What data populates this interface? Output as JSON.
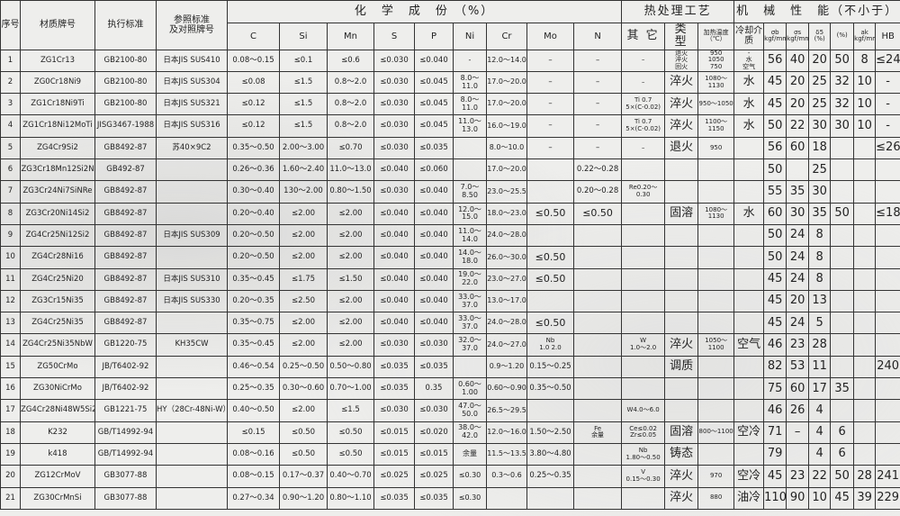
{
  "header": {
    "seq": "序号",
    "material": "材质牌号",
    "standard": "执行标准",
    "reference": "参照标准\n及对照牌号",
    "chem": "化　学　成　份 （%）",
    "heat": "热处理工艺",
    "mech": "机　械　性　能（不小于）",
    "sub": [
      "C",
      "Si",
      "Mn",
      "S",
      "P",
      "Ni",
      "Cr",
      "Mo",
      "N",
      "其 它",
      "类 型",
      "加热温度\n（℃）",
      "冷却介质",
      "σb\nkgf/mm2",
      "σs\nkgf/mm2",
      "δ5\n(%)",
      "(%)",
      "ak\nkgf/mm2",
      "HB"
    ]
  },
  "rows": [
    [
      "1",
      "ZG1Cr13",
      "GB2100-80",
      "日本JIS SUS410",
      "0.08～0.15",
      "≤0.1",
      "≤0.6",
      "≤0.030",
      "≤0.040",
      "-",
      "12.0～14.0",
      "–",
      "–",
      "–",
      "退火\n淬火\n回火",
      "950\n1050\n750",
      "-\n水\n空气",
      "56",
      "40",
      "20",
      "50",
      "8",
      "≤241"
    ],
    [
      "2",
      "ZG0Cr18Ni9",
      "GB2100-80",
      "日本JIS SUS304",
      "≤0.08",
      "≤1.5",
      "0.8～2.0",
      "≤0.030",
      "≤0.045",
      "8.0～11.0",
      "17.0～20.0",
      "–",
      "–",
      "–",
      "淬火",
      "1080～1130",
      "水",
      "45",
      "20",
      "25",
      "32",
      "10",
      "-"
    ],
    [
      "3",
      "ZG1Cr18Ni9Ti",
      "GB2100-80",
      "日本JIS SUS321",
      "≤0.12",
      "≤1.5",
      "0.8～2.0",
      "≤0.030",
      "≤0.045",
      "8.0～11.0",
      "17.0～20.0",
      "–",
      "–",
      "Ti 0.7\n5×(C-0.02)",
      "淬火",
      "950～1050",
      "水",
      "45",
      "20",
      "25",
      "32",
      "10",
      "-"
    ],
    [
      "4",
      "ZG1Cr18Ni12MoTi",
      "JISG3467-1988",
      "日本JIS SUS316",
      "≤0.12",
      "≤1.5",
      "0.8～2.0",
      "≤0.030",
      "≤0.045",
      "11.0～13.0",
      "16.0～19.0",
      "–",
      "–",
      "Ti 0.7\n5×(C-0.02)",
      "淬火",
      "1100～1150",
      "水",
      "50",
      "22",
      "30",
      "30",
      "10",
      "-"
    ],
    [
      "5",
      "ZG4Cr9Si2",
      "GB8492-87",
      "苏40×9C2",
      "0.35～0.50",
      "2.00～3.00",
      "≤0.70",
      "≤0.030",
      "≤0.035",
      "",
      "8.0～10.0",
      "–",
      "–",
      "–",
      "退火",
      "950",
      "",
      "56",
      "60",
      "18",
      "",
      "",
      "≤269"
    ],
    [
      "6",
      "ZG3Cr18Mn12Si2N",
      "GB492-87",
      "",
      "0.26～0.36",
      "1.60～2.40",
      "11.0～13.0",
      "≤0.040",
      "≤0.060",
      "",
      "17.0～20.0",
      "",
      "0.22～0.28",
      "",
      "",
      "",
      "",
      "50",
      "",
      "25",
      "",
      "",
      ""
    ],
    [
      "7",
      "ZG3Cr24Ni7SiNRe",
      "GB8492-87",
      "",
      "0.30～0.40",
      "130～2.00",
      "0.80～1.50",
      "≤0.030",
      "≤0.040",
      "7.0～8.50",
      "23.0～25.5",
      "",
      "0.20～0.28",
      "Re0.20～0.30",
      "",
      "",
      "",
      "55",
      "35",
      "30",
      "",
      "",
      ""
    ],
    [
      "8",
      "ZG3Cr20Ni14Si2",
      "GB8492-87",
      "",
      "0.20～0.40",
      "≤2.00",
      "≤2.00",
      "≤0.040",
      "≤0.040",
      "12.0～15.0",
      "18.0～23.0",
      "≤0.50",
      "≤0.50",
      "",
      "固溶",
      "1080～1130",
      "水",
      "60",
      "30",
      "35",
      "50",
      "",
      "≤187"
    ],
    [
      "9",
      "ZG4Cr25Ni12Si2",
      "GB8492-87",
      "日本JIS SUS309",
      "0.20～0.50",
      "≤2.00",
      "≤2.00",
      "≤0.040",
      "≤0.040",
      "11.0～14.0",
      "24.0～28.0",
      "",
      "",
      "",
      "",
      "",
      "",
      "50",
      "24",
      "8",
      "",
      "",
      ""
    ],
    [
      "10",
      "ZG4Cr28Ni16",
      "GB8492-87",
      "",
      "0.20～0.50",
      "≤2.00",
      "≤2.00",
      "≤0.040",
      "≤0.040",
      "14.0～18.0",
      "26.0～30.0",
      "≤0.50",
      "",
      "",
      "",
      "",
      "",
      "50",
      "24",
      "8",
      "",
      "",
      ""
    ],
    [
      "11",
      "ZG4Cr25Ni20",
      "GB8492-87",
      "日本JIS SUS310",
      "0.35～0.45",
      "≤1.75",
      "≤1.50",
      "≤0.040",
      "≤0.040",
      "19.0～22.0",
      "23.0～27.0",
      "≤0.50",
      "",
      "",
      "",
      "",
      "",
      "45",
      "24",
      "8",
      "",
      "",
      ""
    ],
    [
      "12",
      "ZG3Cr15Ni35",
      "GB8492-87",
      "日本JIS SUS330",
      "0.20～0.35",
      "≤2.50",
      "≤2.00",
      "≤0.040",
      "≤0.040",
      "33.0～37.0",
      "13.0～17.0",
      "",
      "",
      "",
      "",
      "",
      "",
      "45",
      "20",
      "13",
      "",
      "",
      ""
    ],
    [
      "13",
      "ZG4Cr25Ni35",
      "GB8492-87",
      "",
      "0.35～0.75",
      "≤2.00",
      "≤2.00",
      "≤0.040",
      "≤0.040",
      "33.0～37.0",
      "24.0～28.0",
      "≤0.50",
      "",
      "",
      "",
      "",
      "",
      "45",
      "24",
      "5",
      "",
      "",
      ""
    ],
    [
      "14",
      "ZG4Cr25Ni35NbW",
      "GB1220-75",
      "KH35CW",
      "0.35～0.45",
      "≤2.00",
      "≤2.00",
      "≤0.030",
      "≤0.030",
      "32.0～37.0",
      "24.0～27.0",
      "Nb\n1.0  2.0",
      "",
      "W\n1.0～2.0",
      "淬火",
      "1050～1100",
      "空气",
      "46",
      "23",
      "28",
      "",
      "",
      ""
    ],
    [
      "15",
      "ZG50CrMo",
      "JB/T6402-92",
      "",
      "0.46～0.54",
      "0.25～0.50",
      "0.50～0.80",
      "≤0.035",
      "≤0.035",
      "",
      "0.9～1.20",
      "0.15～0.25",
      "",
      "",
      "调质",
      "",
      "",
      "82",
      "53",
      "11",
      "",
      "",
      "240"
    ],
    [
      "16",
      "ZG30NiCrMo",
      "JB/T6402-92",
      "",
      "0.25～0.35",
      "0.30～0.60",
      "0.70～1.00",
      "≤0.035",
      "0.35",
      "0.60～1.00",
      "0.60～0.90",
      "0.35～0.50",
      "",
      "",
      "",
      "",
      "",
      "75",
      "60",
      "17",
      "35",
      "",
      ""
    ],
    [
      "17",
      "ZG4Cr28Ni48W5Si2",
      "GB1221-75",
      "HY（28Cr-48Ni-W）",
      "0.40～0.50",
      "≤2.00",
      "≤1.5",
      "≤0.030",
      "≤0.030",
      "47.0～50.0",
      "26.5～29.5",
      "",
      "",
      "W4.0～6.0",
      "",
      "",
      "",
      "46",
      "26",
      "4",
      "",
      "",
      ""
    ],
    [
      "18",
      "K232",
      "GB/T14992-94",
      "",
      "≤0.15",
      "≤0.50",
      "≤0.50",
      "≤0.015",
      "≤0.020",
      "38.0～42.0",
      "12.0～16.0",
      "1.50～2.50",
      "Fe\n余量",
      "Ce≤0.02\nZr≤0.05",
      "固溶",
      "800～1100",
      "空冷",
      "71",
      "–",
      "4",
      "6",
      "",
      ""
    ],
    [
      "19",
      "k418",
      "GB/T14992-94",
      "",
      "0.08～0.16",
      "≤0.50",
      "≤0.50",
      "≤0.015",
      "≤0.015",
      "余量",
      "11.5～13.5",
      "3.80～4.80",
      "",
      "Nb\n1.80～0.50",
      "铸态",
      "",
      "",
      "79",
      "",
      "4",
      "6",
      "",
      ""
    ],
    [
      "20",
      "ZG12CrMoV",
      "GB3077-88",
      "",
      "0.08～0.15",
      "0.17～0.37",
      "0.40～0.70",
      "≤0.025",
      "≤0.025",
      "≤0.30",
      "0.3～0.6",
      "0.25～0.35",
      "",
      "V\n0.15～0.30",
      "淬火",
      "970",
      "空冷",
      "45",
      "23",
      "22",
      "50",
      "28",
      "241"
    ],
    [
      "21",
      "ZG30CrMnSi",
      "GB3077-88",
      "",
      "0.27～0.34",
      "0.90～1.20",
      "0.80～1.10",
      "≤0.035",
      "≤0.035",
      "≤0.30",
      "",
      "",
      "",
      "",
      "淬火",
      "880",
      "油冷",
      "110",
      "90",
      "10",
      "45",
      "39",
      "229"
    ]
  ]
}
